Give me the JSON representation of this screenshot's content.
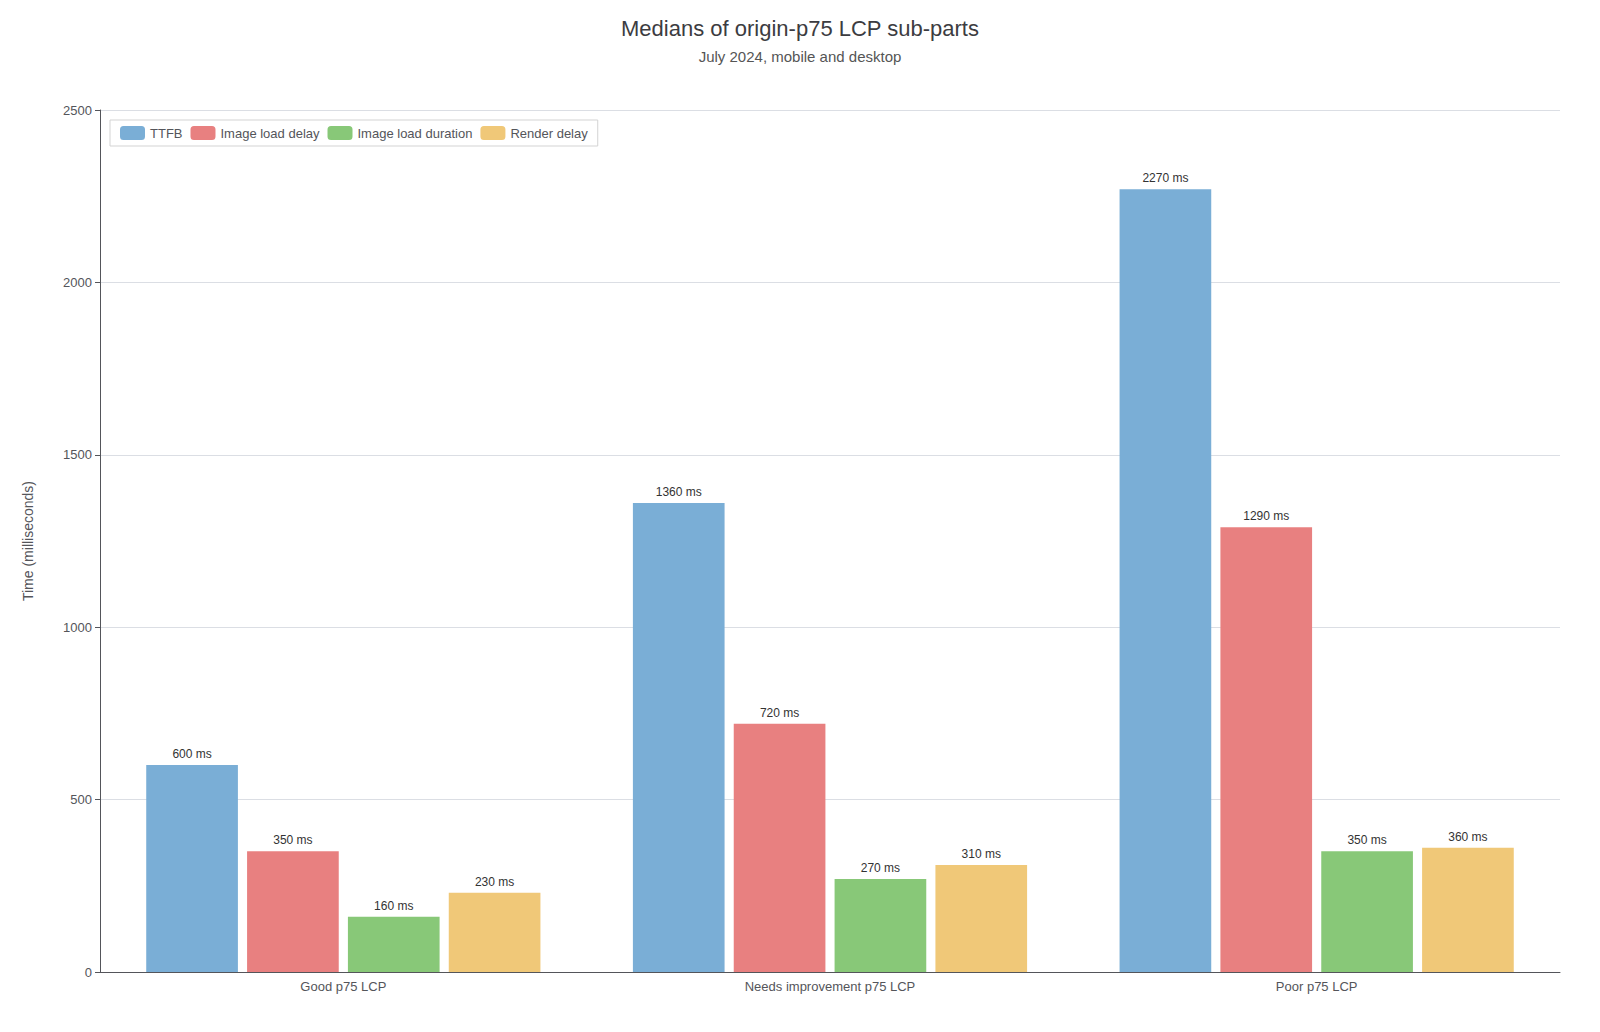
{
  "chart_data": {
    "type": "bar",
    "title": "Medians of origin-p75 LCP sub-parts",
    "subtitle": "July 2024, mobile and desktop",
    "categories": [
      "Good p75 LCP",
      "Needs improvement p75 LCP",
      "Poor p75 LCP"
    ],
    "series": [
      {
        "name": "TTFB",
        "color": "#7aaed6",
        "values": [
          600,
          1360,
          2270
        ],
        "value_labels": [
          "600 ms",
          "1360 ms",
          "2270 ms"
        ]
      },
      {
        "name": "Image load delay",
        "color": "#e88080",
        "values": [
          350,
          720,
          1290
        ],
        "value_labels": [
          "350 ms",
          "720 ms",
          "1290 ms"
        ]
      },
      {
        "name": "Image load duration",
        "color": "#88c878",
        "values": [
          160,
          270,
          350
        ],
        "value_labels": [
          "160 ms",
          "270 ms",
          "350 ms"
        ]
      },
      {
        "name": "Render delay",
        "color": "#f0c878",
        "values": [
          230,
          310,
          360
        ],
        "value_labels": [
          "230 ms",
          "310 ms",
          "360 ms"
        ]
      }
    ],
    "ylabel": "Time (milliseconds)",
    "ylim": [
      0,
      2500
    ],
    "yticks": [
      0,
      500,
      1000,
      1500,
      2000,
      2500
    ],
    "grid": true,
    "legend": "upper left",
    "data_labels": true
  }
}
